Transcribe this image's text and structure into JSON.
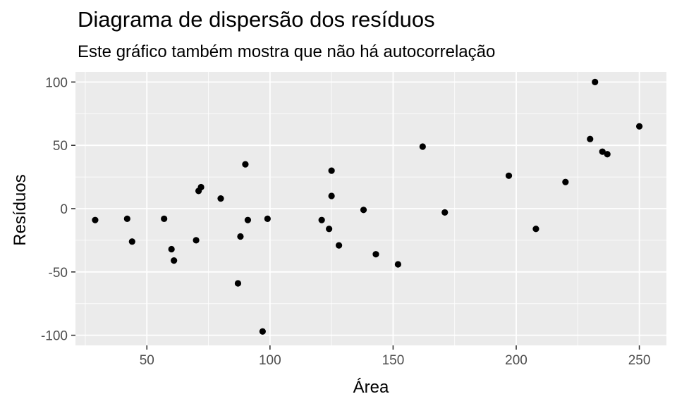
{
  "chart_data": {
    "type": "scatter",
    "title": "Diagrama de dispersão dos resíduos",
    "subtitle": "Este gráfico também mostra que não há autocorrelação",
    "xlabel": "Área",
    "ylabel": "Resíduos",
    "xlim": [
      21,
      261
    ],
    "ylim": [
      -108,
      108
    ],
    "xticks": [
      50,
      100,
      150,
      200,
      250
    ],
    "yticks": [
      -100,
      -50,
      0,
      50,
      100
    ],
    "xtick_labels": [
      "50",
      "100",
      "150",
      "200",
      "250"
    ],
    "ytick_labels": [
      "-100",
      "-50",
      "0",
      "50",
      "100"
    ],
    "grid": true,
    "background": "#ebebeb",
    "point_color": "#000000",
    "points": [
      {
        "x": 29,
        "y": -9
      },
      {
        "x": 42,
        "y": -8
      },
      {
        "x": 44,
        "y": -26
      },
      {
        "x": 57,
        "y": -8
      },
      {
        "x": 60,
        "y": -32
      },
      {
        "x": 61,
        "y": -41
      },
      {
        "x": 70,
        "y": -25
      },
      {
        "x": 71,
        "y": 14
      },
      {
        "x": 72,
        "y": 17
      },
      {
        "x": 80,
        "y": 8
      },
      {
        "x": 87,
        "y": -59
      },
      {
        "x": 88,
        "y": -22
      },
      {
        "x": 90,
        "y": 35
      },
      {
        "x": 91,
        "y": -9
      },
      {
        "x": 97,
        "y": -97
      },
      {
        "x": 99,
        "y": -8
      },
      {
        "x": 121,
        "y": -9
      },
      {
        "x": 124,
        "y": -16
      },
      {
        "x": 125,
        "y": 30
      },
      {
        "x": 125,
        "y": 10
      },
      {
        "x": 128,
        "y": -29
      },
      {
        "x": 138,
        "y": -1
      },
      {
        "x": 143,
        "y": -36
      },
      {
        "x": 152,
        "y": -44
      },
      {
        "x": 162,
        "y": 49
      },
      {
        "x": 171,
        "y": -3
      },
      {
        "x": 197,
        "y": 26
      },
      {
        "x": 208,
        "y": -16
      },
      {
        "x": 220,
        "y": 21
      },
      {
        "x": 230,
        "y": 55
      },
      {
        "x": 232,
        "y": 100
      },
      {
        "x": 235,
        "y": 45
      },
      {
        "x": 237,
        "y": 43
      },
      {
        "x": 250,
        "y": 65
      }
    ]
  }
}
